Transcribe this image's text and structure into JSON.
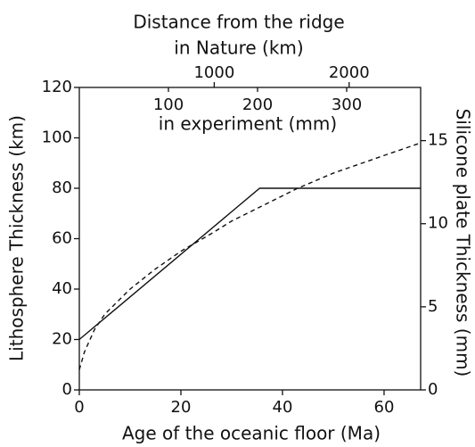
{
  "chart_data": {
    "type": "line",
    "x_title": "Age of the oceanic floor (Ma)",
    "y_title": "Lithosphere Thickness (km)",
    "y2_title": "Silicone plate Thickness (mm)",
    "x2_title": "Distance from the ridge",
    "x2_subtitle": "in Nature (km)",
    "x3_title": "in experiment (mm)",
    "xlim": [
      0,
      67.2
    ],
    "xticks": [
      0,
      20,
      40,
      60
    ],
    "ylim": [
      0,
      120
    ],
    "yticks": [
      0,
      20,
      40,
      60,
      80,
      100,
      120
    ],
    "y2lim": [
      0,
      18.2
    ],
    "y2ticks": [
      0,
      5,
      10,
      15
    ],
    "x2lim": [
      0,
      2530
    ],
    "x2ticks": [
      1000,
      2000
    ],
    "x3lim": [
      0,
      383
    ],
    "x3ticks": [
      100,
      200,
      300
    ],
    "series": [
      {
        "style": "solid",
        "color": "#111111",
        "x": [
          0,
          35.5,
          67.2
        ],
        "values": [
          20,
          80,
          80
        ]
      },
      {
        "style": "dashed",
        "color": "#111111",
        "x": [
          0,
          1,
          3,
          5,
          10,
          15,
          20,
          26,
          30,
          35,
          40,
          43,
          50,
          55,
          60,
          67.2
        ],
        "values": [
          8,
          15,
          24,
          30,
          40,
          48,
          55,
          62,
          67,
          72,
          77,
          80,
          86,
          89.5,
          93,
          98
        ]
      }
    ]
  }
}
